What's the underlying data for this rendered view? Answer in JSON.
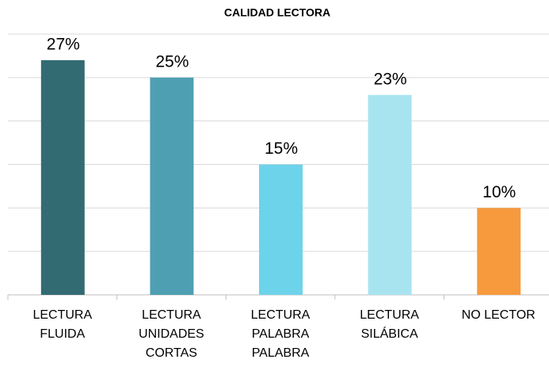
{
  "chart_data": {
    "type": "bar",
    "title": "CALIDAD LECTORA",
    "categories": [
      "LECTURA FLUIDA",
      "LECTURA UNIDADES CORTAS",
      "LECTURA PALABRA PALABRA",
      "LECTURA SILÁBICA",
      "NO LECTOR"
    ],
    "values": [
      27,
      25,
      15,
      23,
      10
    ],
    "value_labels": [
      "27%",
      "25%",
      "15%",
      "23%",
      "10%"
    ],
    "colors": [
      "#336b73",
      "#4f9fb3",
      "#6dd3ea",
      "#a8e4f0",
      "#f79a3e"
    ],
    "ylim": [
      0,
      30
    ],
    "yticks": [
      0,
      5,
      10,
      15,
      20,
      25,
      30
    ],
    "grid": true
  }
}
